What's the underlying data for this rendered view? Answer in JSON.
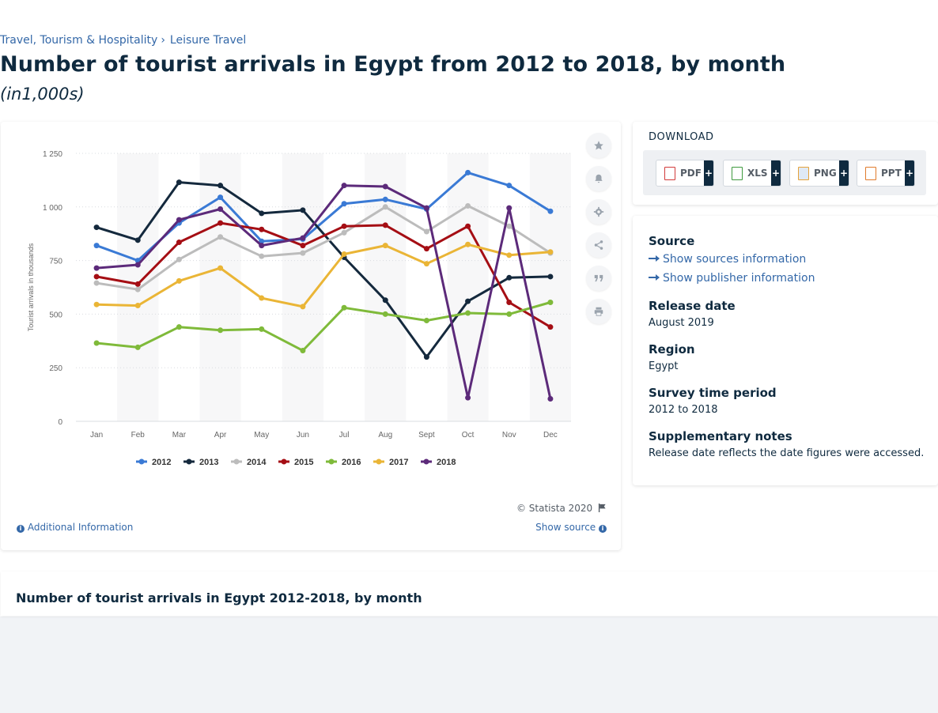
{
  "breadcrumb": [
    {
      "label": "Travel, Tourism & Hospitality"
    },
    {
      "label": "Leisure Travel"
    }
  ],
  "breadcrumb_separator": "›",
  "page": {
    "title": "Number of tourist arrivals in Egypt from 2012 to 2018, by month",
    "unit": "(in1,000s)"
  },
  "chart_data": {
    "type": "line",
    "categories": [
      "Jan",
      "Feb",
      "Mar",
      "Apr",
      "May",
      "Jun",
      "Jul",
      "Aug",
      "Sept",
      "Oct",
      "Nov",
      "Dec"
    ],
    "ylabel": "Tourist arrivals in thousands",
    "ylim": [
      0,
      1250
    ],
    "yticks": [
      0,
      250,
      500,
      750,
      1000,
      1250
    ],
    "ytick_labels": [
      "0",
      "250",
      "500",
      "750",
      "1 000",
      "1 250"
    ],
    "grid": "horizontal dotted",
    "legend_position": "bottom-center",
    "series": [
      {
        "name": "2012",
        "color": "#3a7ad5",
        "values": [
          820,
          750,
          925,
          1045,
          840,
          850,
          1015,
          1035,
          990,
          1160,
          1100,
          980
        ]
      },
      {
        "name": "2013",
        "color": "#14293d",
        "values": [
          905,
          845,
          1115,
          1100,
          970,
          985,
          765,
          565,
          300,
          560,
          670,
          675
        ]
      },
      {
        "name": "2014",
        "color": "#bcbcbc",
        "values": [
          645,
          615,
          755,
          860,
          770,
          785,
          880,
          1000,
          885,
          1005,
          910,
          785
        ]
      },
      {
        "name": "2015",
        "color": "#a50e14",
        "values": [
          675,
          640,
          835,
          925,
          895,
          820,
          910,
          915,
          805,
          910,
          555,
          440
        ]
      },
      {
        "name": "2016",
        "color": "#7fba3a",
        "values": [
          365,
          345,
          440,
          425,
          430,
          330,
          530,
          500,
          470,
          505,
          500,
          555
        ]
      },
      {
        "name": "2017",
        "color": "#eab536",
        "values": [
          545,
          540,
          655,
          715,
          575,
          535,
          780,
          820,
          735,
          825,
          775,
          790
        ]
      },
      {
        "name": "2018",
        "color": "#5c2a7a",
        "values": [
          715,
          730,
          940,
          990,
          820,
          855,
          1100,
          1095,
          995,
          110,
          995,
          105
        ]
      }
    ]
  },
  "chart_footer": {
    "copyright": "© Statista 2020",
    "additional_info": "Additional Information",
    "show_source": "Show source"
  },
  "download": {
    "title": "DOWNLOAD",
    "buttons": [
      {
        "label": "PDF",
        "color": "#d23b3b"
      },
      {
        "label": "XLS",
        "color": "#3f9a3f"
      },
      {
        "label": "PNG",
        "color": "#e5a23a"
      },
      {
        "label": "PPT",
        "color": "#e07b2c"
      }
    ],
    "plus": "+"
  },
  "meta": {
    "source_heading": "Source",
    "show_sources": "Show sources information",
    "show_publisher": "Show publisher information",
    "release_heading": "Release date",
    "release_value": "August 2019",
    "region_heading": "Region",
    "region_value": "Egypt",
    "survey_heading": "Survey time period",
    "survey_value": "2012 to 2018",
    "notes_heading": "Supplementary notes",
    "notes_value": "Release date reflects the date figures were accessed."
  },
  "table": {
    "title": "Number of tourist arrivals in Egypt 2012-2018, by month"
  }
}
